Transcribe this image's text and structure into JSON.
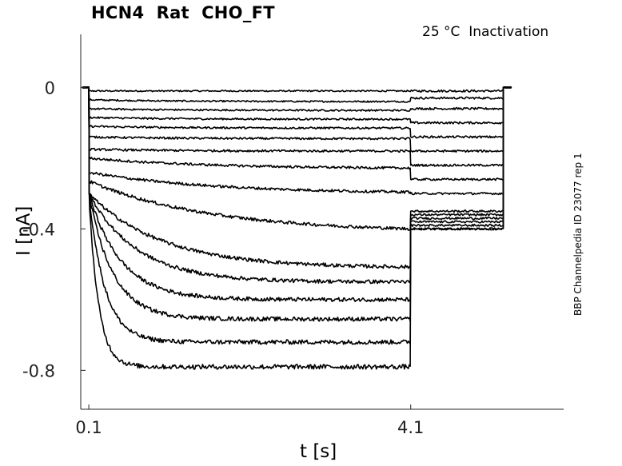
{
  "chart_data": {
    "type": "line",
    "title": "HCN4  Rat  CHO_FT",
    "condition": "25 °C  Inactivation",
    "side_label": "BBP Channelpedia ID 23077 rep 1",
    "xlabel": "t [s]",
    "ylabel": "I [nA]",
    "xlim": [
      0.0,
      6.0
    ],
    "ylim": [
      -0.91,
      0.15
    ],
    "x_ticks": [
      0.1,
      4.1
    ],
    "x_tick_labels": [
      "0.1",
      "4.1"
    ],
    "y_ticks": [
      0,
      -0.4,
      -0.8
    ],
    "y_tick_labels": [
      "0",
      "-0.4",
      "-0.8"
    ],
    "grid": false,
    "legend": "none",
    "line_color": "#000000",
    "protocol": {
      "holding_end": 0.1,
      "step_end": 4.1,
      "tail_end": 5.25
    },
    "series": [
      {
        "start": -0.01,
        "steady": -0.01,
        "tau": 1.0,
        "tail": -0.01
      },
      {
        "start": -0.035,
        "steady": -0.04,
        "tau": 1.0,
        "tail": -0.03
      },
      {
        "start": -0.06,
        "steady": -0.065,
        "tau": 1.0,
        "tail": -0.06
      },
      {
        "start": -0.085,
        "steady": -0.09,
        "tau": 1.0,
        "tail": -0.1
      },
      {
        "start": -0.11,
        "steady": -0.115,
        "tau": 1.0,
        "tail": -0.14
      },
      {
        "start": -0.14,
        "steady": -0.145,
        "tau": 1.0,
        "tail": -0.18
      },
      {
        "start": -0.175,
        "steady": -0.18,
        "tau": 1.0,
        "tail": -0.22
      },
      {
        "start": -0.2,
        "steady": -0.23,
        "tau": 1.5,
        "tail": -0.26
      },
      {
        "start": -0.24,
        "steady": -0.3,
        "tau": 1.5,
        "tail": -0.3
      },
      {
        "start": -0.265,
        "steady": -0.41,
        "tau": 1.5,
        "tail": -0.35
      },
      {
        "start": -0.3,
        "steady": -0.51,
        "tau": 0.9,
        "tail": -0.36
      },
      {
        "start": -0.3,
        "steady": -0.55,
        "tau": 0.6,
        "tail": -0.37
      },
      {
        "start": -0.3,
        "steady": -0.6,
        "tau": 0.4,
        "tail": -0.38
      },
      {
        "start": -0.3,
        "steady": -0.655,
        "tau": 0.3,
        "tail": -0.39
      },
      {
        "start": -0.3,
        "steady": -0.72,
        "tau": 0.2,
        "tail": -0.4
      },
      {
        "start": -0.3,
        "steady": -0.79,
        "tau": 0.12,
        "tail": -0.4
      }
    ]
  }
}
